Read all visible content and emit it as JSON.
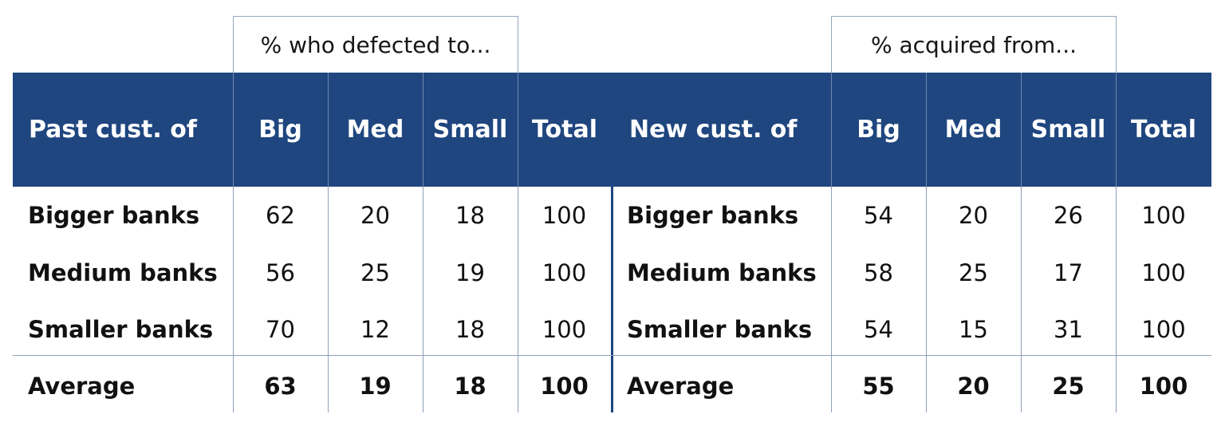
{
  "captions": {
    "left": "% who defected to...",
    "right": "% acquired from..."
  },
  "header": {
    "left_label": "Past cust. of",
    "right_label": "New cust. of",
    "columns": [
      "Big",
      "Med",
      "Small",
      "Total"
    ]
  },
  "tables": {
    "left": {
      "rows": [
        {
          "label": "Bigger banks",
          "values": [
            "62",
            "20",
            "18",
            "100"
          ]
        },
        {
          "label": "Medium banks",
          "values": [
            "56",
            "25",
            "19",
            "100"
          ]
        },
        {
          "label": "Smaller banks",
          "values": [
            "70",
            "12",
            "18",
            "100"
          ]
        }
      ],
      "average": {
        "label": "Average",
        "values": [
          "63",
          "19",
          "18",
          "100"
        ]
      }
    },
    "right": {
      "rows": [
        {
          "label": "Bigger banks",
          "values": [
            "54",
            "20",
            "26",
            "100"
          ]
        },
        {
          "label": "Medium banks",
          "values": [
            "58",
            "25",
            "17",
            "100"
          ]
        },
        {
          "label": "Smaller banks",
          "values": [
            "54",
            "15",
            "31",
            "100"
          ]
        }
      ],
      "average": {
        "label": "Average",
        "values": [
          "55",
          "20",
          "25",
          "100"
        ]
      }
    }
  },
  "colors": {
    "header_background": "#20467f",
    "header_text": "#ffffff",
    "grid_lines": "#8d9fb9"
  }
}
